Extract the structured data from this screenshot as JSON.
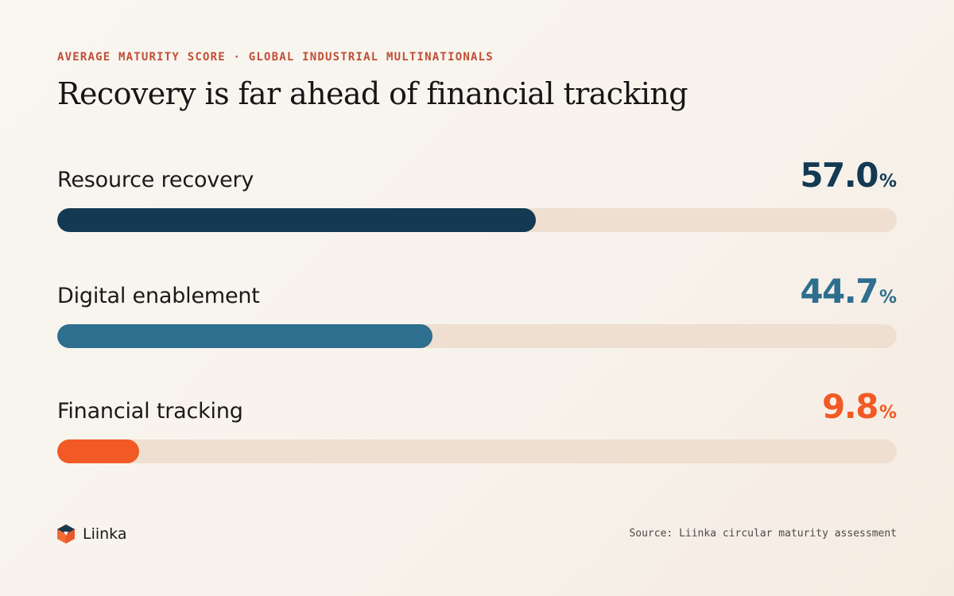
{
  "header": {
    "eyebrow": "AVERAGE MATURITY SCORE · GLOBAL INDUSTRIAL MULTINATIONALS",
    "title": "Recovery is far ahead of financial tracking"
  },
  "chart_data": {
    "type": "bar",
    "orientation": "horizontal",
    "title": "Recovery is far ahead of financial tracking",
    "subtitle": "AVERAGE MATURITY SCORE · GLOBAL INDUSTRIAL MULTINATIONALS",
    "unit": "%",
    "xlim": [
      0,
      100
    ],
    "grid": false,
    "categories": [
      "Resource recovery",
      "Digital enablement",
      "Financial tracking"
    ],
    "values": [
      57.0,
      44.7,
      9.8
    ],
    "value_labels": [
      "57.0",
      "44.7",
      "9.8"
    ],
    "colors": [
      "#133a52",
      "#2e6e8e",
      "#f15a24"
    ],
    "track_color": "#efdfd0"
  },
  "footer": {
    "brand": "Liinka",
    "source": "Source: Liinka circular maturity assessment"
  }
}
